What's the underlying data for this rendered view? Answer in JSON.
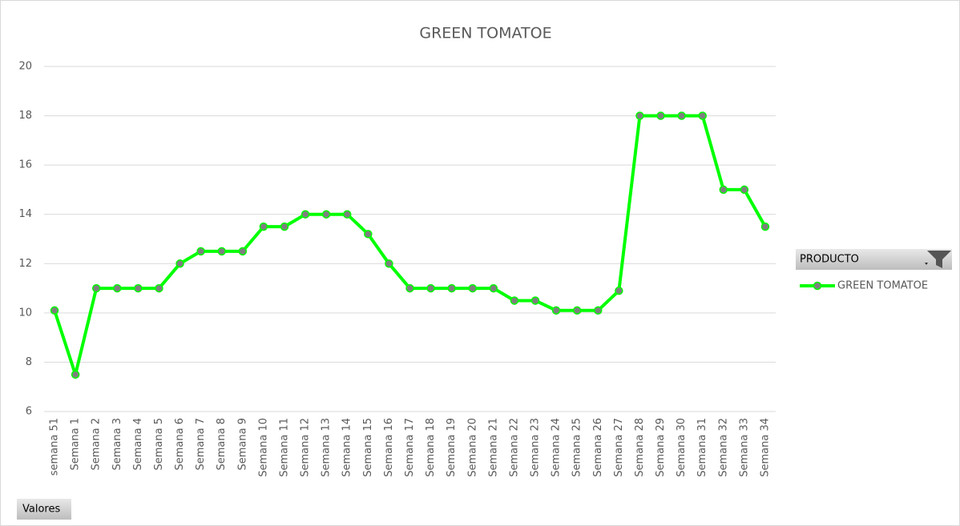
{
  "chart_data": {
    "type": "line",
    "title": "GREEN TOMATOE",
    "categories": [
      "semana 51",
      "Semana 1",
      "Semana 2",
      "Semana 3",
      "Semana 4",
      "Semana 5",
      "Semana 6",
      "Semana 7",
      "Semana 8",
      "Semana 9",
      "Semana 10",
      "Semana 11",
      "Semana 12",
      "Semana 13",
      "Semana 14",
      "Semana 15",
      "Semana 16",
      "Semana 17",
      "Semana 18",
      "Semana 19",
      "Semana 20",
      "Semana 21",
      "Semana 22",
      "Semana 23",
      "Semana 24",
      "Semana 25",
      "Semana 26",
      "Semana 27",
      "Semana 28",
      "Semana 29",
      "Semana 30",
      "Semana 31",
      "Semana 32",
      "Semana 33",
      "Semana 34"
    ],
    "series": [
      {
        "name": "GREEN TOMATOE",
        "color": "#00ff00",
        "marker_color": "#7f7f7f",
        "values": [
          10.1,
          7.5,
          11,
          11,
          11,
          11,
          12,
          12.5,
          12.5,
          12.5,
          13.5,
          13.5,
          14,
          14,
          14,
          13.2,
          12,
          11,
          11,
          11,
          11,
          11,
          10.5,
          10.5,
          10.1,
          10.1,
          10.1,
          10.9,
          18,
          18,
          18,
          18,
          15,
          15,
          13.5
        ]
      }
    ],
    "ylim": [
      6,
      20
    ],
    "yticks": [
      6,
      8,
      10,
      12,
      14,
      16,
      18,
      20
    ],
    "grid": true,
    "legend_title": "PRODUCTO",
    "legend_position": "right",
    "field_button": "Valores"
  }
}
